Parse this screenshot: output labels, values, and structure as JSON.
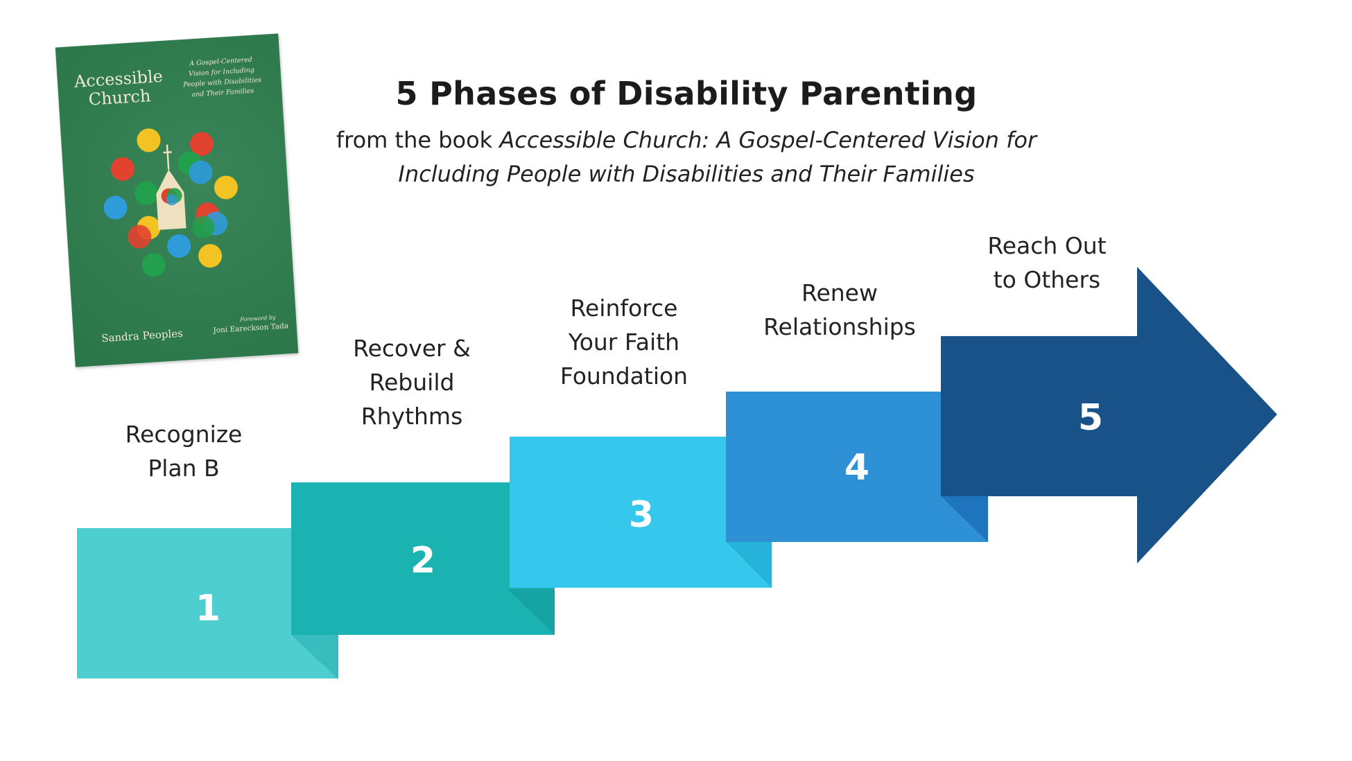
{
  "heading": {
    "title": "5 Phases of Disability Parenting",
    "subtitle_prefix": "from the book ",
    "subtitle_book_line1": "Accessible Church: A Gospel-Centered Vision for",
    "subtitle_book_line2": "Including People with Disabilities and Their Families"
  },
  "book_cover": {
    "title_line1": "Accessible",
    "title_line2": "Church",
    "subtitle_lines": [
      "A Gospel-Centered",
      "Vision for Including",
      "People with Disabilities",
      "and Their Families"
    ],
    "author": "Sandra Peoples",
    "foreword_label": "Foreword by",
    "foreword_author": "Joni Eareckson Tada",
    "colors": {
      "background": "#2e7f4f",
      "yellow": "#f2c323",
      "red": "#e2432f",
      "blue": "#2f9bd8",
      "green": "#22a04b",
      "church": "#efe1bf"
    }
  },
  "phases": [
    {
      "number": "1",
      "label_lines": [
        "Recognize",
        "Plan B"
      ],
      "color": "#4ecece",
      "fold": "#38bcbd"
    },
    {
      "number": "2",
      "label_lines": [
        "Recover &",
        "Rebuild",
        "Rhythms"
      ],
      "color": "#1bb3b2",
      "fold": "#15a3a3"
    },
    {
      "number": "3",
      "label_lines": [
        "Reinforce",
        "Your Faith",
        "Foundation"
      ],
      "color": "#36c7ec",
      "fold": "#27b2da"
    },
    {
      "number": "4",
      "label_lines": [
        "Renew",
        "Relationships"
      ],
      "color": "#2e90d5",
      "fold": "#1f75bd"
    },
    {
      "number": "5",
      "label_lines": [
        "Reach Out",
        "to Others"
      ],
      "color": "#195289"
    }
  ]
}
